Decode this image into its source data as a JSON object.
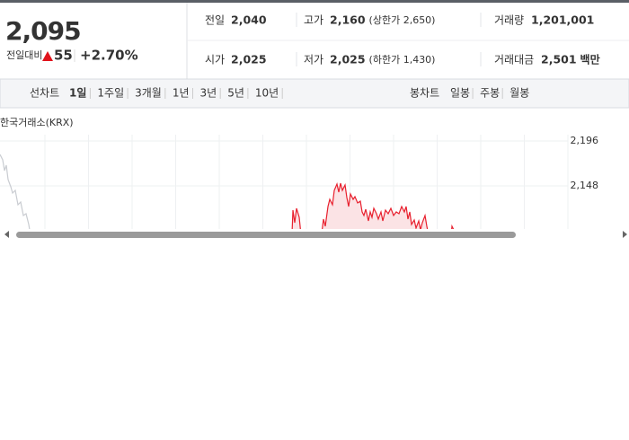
{
  "summary": {
    "price": "2,095",
    "change_label": "전일대비",
    "change": "55",
    "change_rate": "+2.70%"
  },
  "stats": [
    [
      {
        "label": "전일",
        "value": "2,040"
      },
      {
        "label": "고가",
        "value": "2,160",
        "note": "(상한가 2,650)"
      },
      {
        "label": "거래량",
        "value": "1,201,001"
      }
    ],
    [
      {
        "label": "시가",
        "value": "2,025"
      },
      {
        "label": "저가",
        "value": "2,025",
        "note": "(하한가 1,430)"
      },
      {
        "label": "거래대금",
        "value": "2,501",
        "unit": "백만"
      }
    ]
  ],
  "toolbar": {
    "line_label": "선차트",
    "periods": [
      "1일",
      "1주일",
      "3개월",
      "1년",
      "3년",
      "5년",
      "10년"
    ],
    "candle_label": "봉차트",
    "candles": [
      "일봉",
      "주봉",
      "월봉"
    ]
  },
  "chart": {
    "source": "한국거래소(KRX)",
    "yticks": [
      "2,196",
      "2,148"
    ]
  }
}
